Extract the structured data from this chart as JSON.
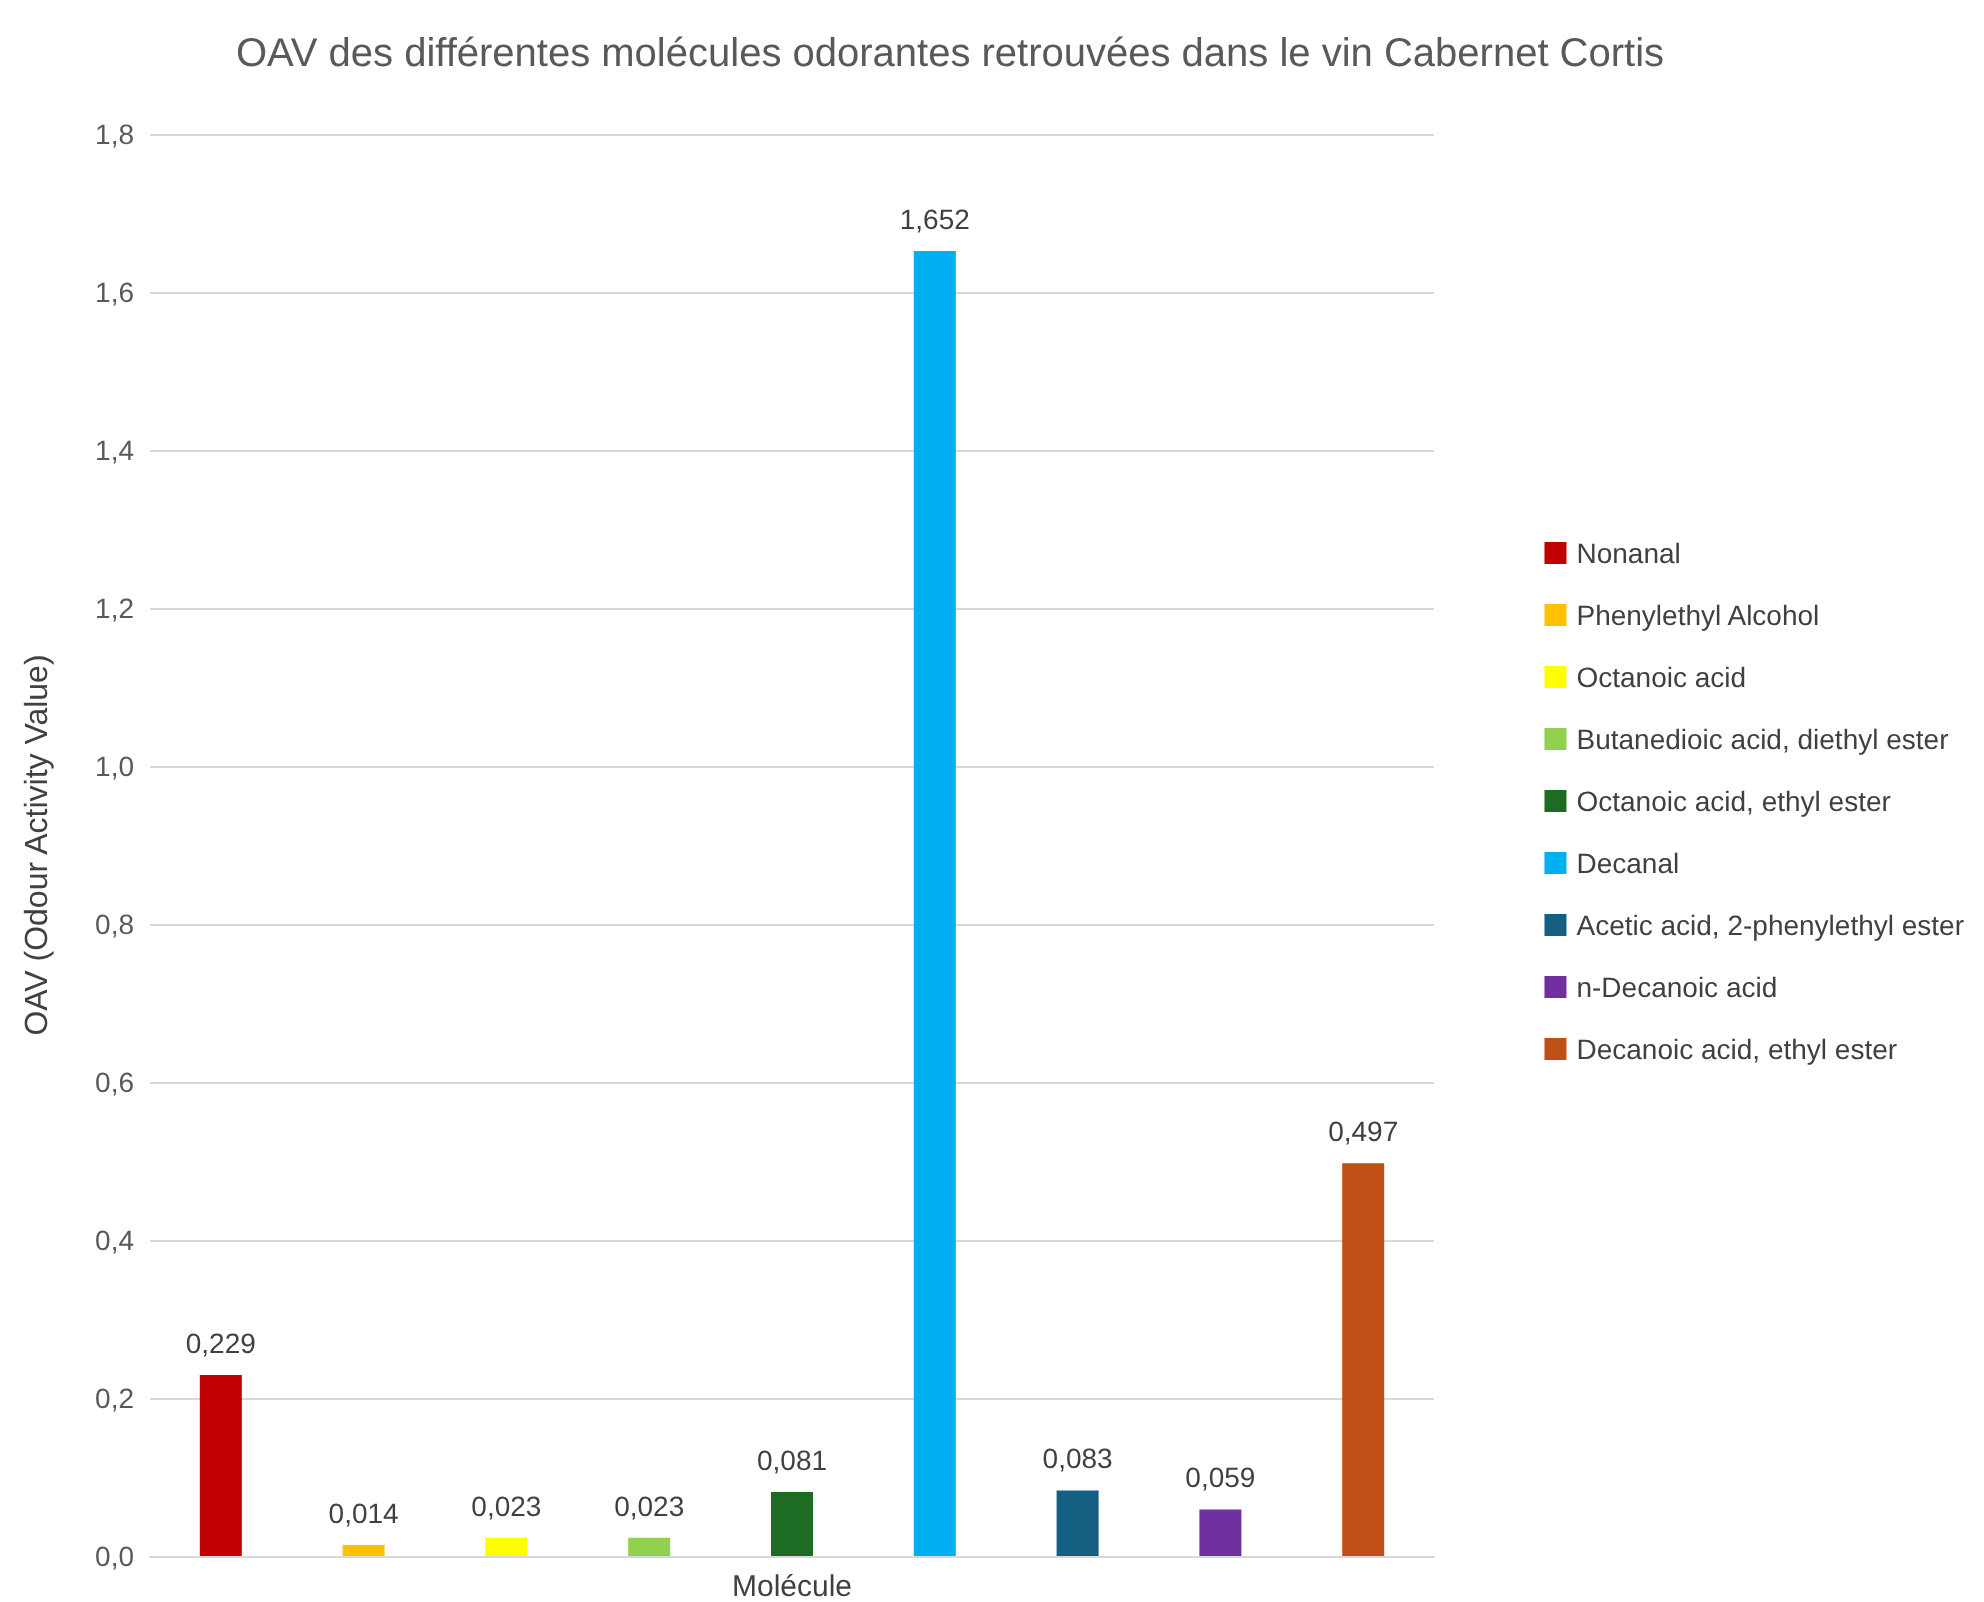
{
  "chart_data": {
    "type": "bar",
    "title": "OAV des différentes molécules odorantes retrouvées dans le vin Cabernet Cortis",
    "ylabel": "OAV (Odour Activity Value)",
    "categories": [
      "Molécule"
    ],
    "series": [
      {
        "name": "Nonanal",
        "color": "#c00000",
        "values": [
          0.229
        ],
        "value_labels": [
          "0,229"
        ]
      },
      {
        "name": "Phenylethyl Alcohol",
        "color": "#ffc000",
        "values": [
          0.014
        ],
        "value_labels": [
          "0,014"
        ]
      },
      {
        "name": "Octanoic acid",
        "color": "#ffff00",
        "values": [
          0.023
        ],
        "value_labels": [
          "0,023"
        ]
      },
      {
        "name": "Butanedioic acid, diethyl ester",
        "color": "#92d050",
        "values": [
          0.023
        ],
        "value_labels": [
          "0,023"
        ]
      },
      {
        "name": "Octanoic acid, ethyl ester",
        "color": "#1e6b24",
        "values": [
          0.081
        ],
        "value_labels": [
          "0,081"
        ]
      },
      {
        "name": "Decanal",
        "color": "#00b0f0",
        "values": [
          1.652
        ],
        "value_labels": [
          "1,652"
        ]
      },
      {
        "name": "Acetic acid, 2-phenylethyl ester",
        "color": "#156082",
        "values": [
          0.083
        ],
        "value_labels": [
          "0,083"
        ]
      },
      {
        "name": "n-Decanoic acid",
        "color": "#7030a0",
        "values": [
          0.059
        ],
        "value_labels": [
          "0,059"
        ]
      },
      {
        "name": "Decanoic acid, ethyl ester",
        "color": "#c04f15",
        "values": [
          0.497
        ],
        "value_labels": [
          "0,497"
        ]
      }
    ],
    "ylim": [
      0,
      1.8
    ],
    "yticks": [
      {
        "value": 0,
        "label": "0,0"
      },
      {
        "value": 0.2,
        "label": "0,2"
      },
      {
        "value": 0.4,
        "label": "0,4"
      },
      {
        "value": 0.6,
        "label": "0,6"
      },
      {
        "value": 0.8,
        "label": "0,8"
      },
      {
        "value": 1,
        "label": "1,0"
      },
      {
        "value": 1.2,
        "label": "1,2"
      },
      {
        "value": 1.4,
        "label": "1,4"
      },
      {
        "value": 1.6,
        "label": "1,6"
      },
      {
        "value": 1.8,
        "label": "1,8"
      }
    ],
    "grid": "y",
    "legend": "right"
  }
}
